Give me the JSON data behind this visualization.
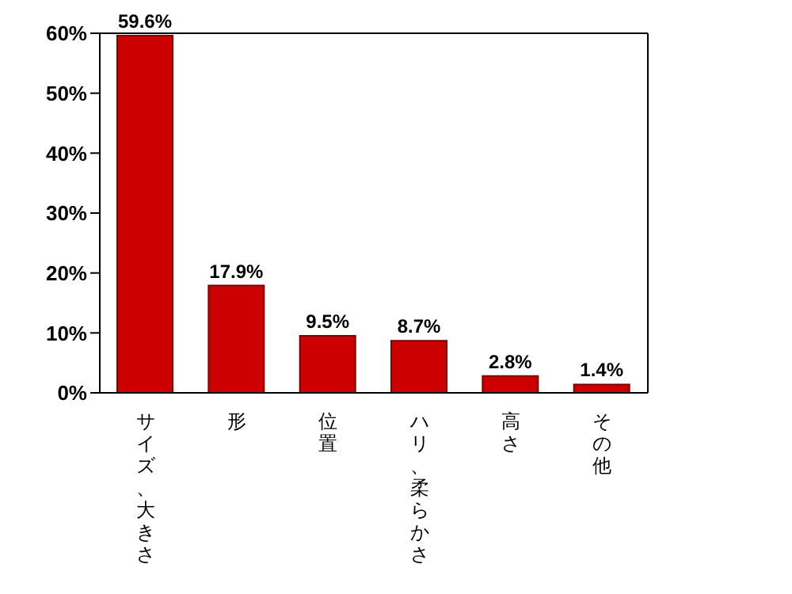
{
  "chart_data": {
    "type": "bar",
    "categories": [
      "サイズ、大きさ",
      "形",
      "位置",
      "ハリ、柔らかさ",
      "高さ",
      "その他"
    ],
    "values": [
      59.6,
      17.9,
      9.5,
      8.7,
      2.8,
      1.4
    ],
    "value_labels": [
      "59.6%",
      "17.9%",
      "9.5%",
      "8.7%",
      "2.8%",
      "1.4%"
    ],
    "color": "#cc0000",
    "ylim": [
      0,
      60
    ],
    "yticks": [
      {
        "value": 0,
        "label": "0%"
      },
      {
        "value": 10,
        "label": "10%"
      },
      {
        "value": 20,
        "label": "20%"
      },
      {
        "value": 30,
        "label": "30%"
      },
      {
        "value": 40,
        "label": "40%"
      },
      {
        "value": 50,
        "label": "50%"
      },
      {
        "value": 60,
        "label": "60%"
      }
    ],
    "grid": false,
    "legend": false
  }
}
